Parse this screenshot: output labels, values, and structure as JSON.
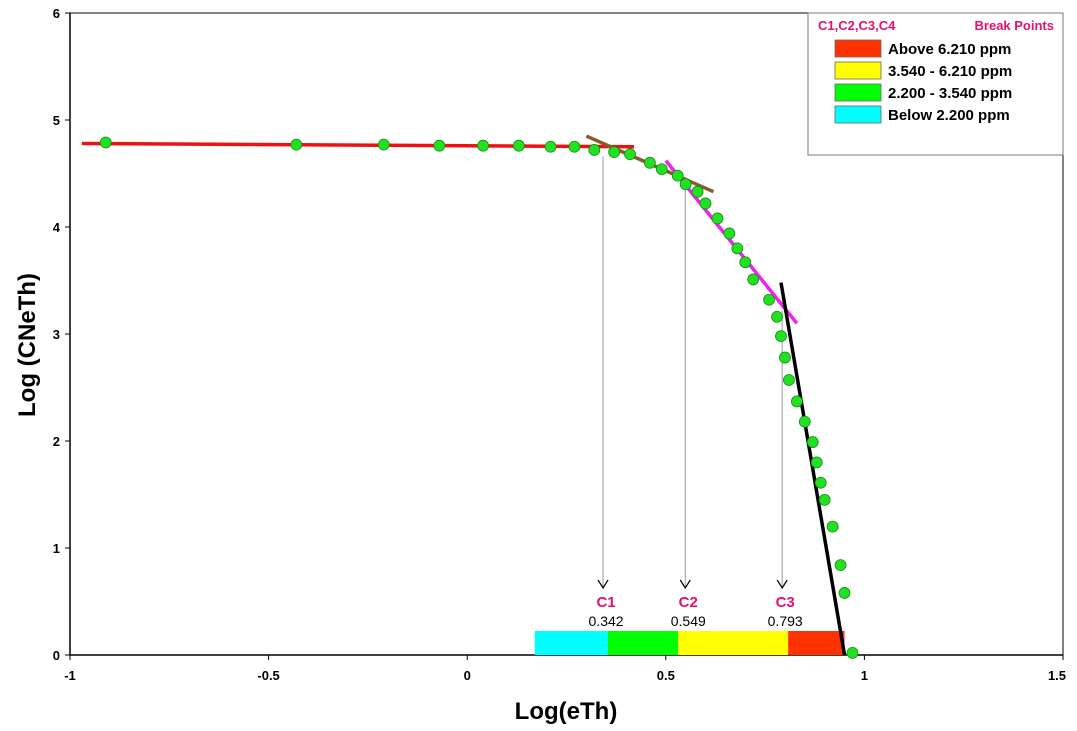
{
  "chart_data": {
    "type": "scatter",
    "title": "",
    "xlabel": "Log(eTh)",
    "ylabel": "Log (CNeTh)",
    "xlim": [
      -1,
      1.5
    ],
    "ylim": [
      0,
      6
    ],
    "x_ticks": [
      "-1",
      "-0.5",
      "0",
      "0.5",
      "1",
      "1.5"
    ],
    "y_ticks": [
      "0",
      "1",
      "2",
      "3",
      "4",
      "5",
      "6"
    ],
    "grid": false,
    "colors": {
      "points": "#22e022",
      "points_stroke": "#149014",
      "line1": "#ee1111",
      "line2": "#8b5a2b",
      "line3": "#ee22ee",
      "line4": "#000000",
      "accent": "#e0116f",
      "connector": "#9a9a9a"
    },
    "points": [
      [
        -0.91,
        4.79
      ],
      [
        -0.43,
        4.77
      ],
      [
        -0.21,
        4.77
      ],
      [
        -0.07,
        4.76
      ],
      [
        0.04,
        4.76
      ],
      [
        0.13,
        4.76
      ],
      [
        0.21,
        4.75
      ],
      [
        0.27,
        4.75
      ],
      [
        0.32,
        4.72
      ],
      [
        0.37,
        4.7
      ],
      [
        0.41,
        4.68
      ],
      [
        0.46,
        4.6
      ],
      [
        0.49,
        4.54
      ],
      [
        0.53,
        4.48
      ],
      [
        0.55,
        4.4
      ],
      [
        0.58,
        4.33
      ],
      [
        0.6,
        4.22
      ],
      [
        0.63,
        4.08
      ],
      [
        0.66,
        3.94
      ],
      [
        0.68,
        3.8
      ],
      [
        0.7,
        3.67
      ],
      [
        0.72,
        3.51
      ],
      [
        0.76,
        3.32
      ],
      [
        0.78,
        3.16
      ],
      [
        0.79,
        2.98
      ],
      [
        0.8,
        2.78
      ],
      [
        0.81,
        2.57
      ],
      [
        0.83,
        2.37
      ],
      [
        0.85,
        2.18
      ],
      [
        0.87,
        1.99
      ],
      [
        0.88,
        1.8
      ],
      [
        0.89,
        1.61
      ],
      [
        0.9,
        1.45
      ],
      [
        0.92,
        1.2
      ],
      [
        0.94,
        0.84
      ],
      [
        0.95,
        0.58
      ],
      [
        0.97,
        0.02
      ]
    ],
    "fit_lines": [
      {
        "color": "#ee1111",
        "from": [
          -0.97,
          4.78
        ],
        "to": [
          0.42,
          4.75
        ]
      },
      {
        "color": "#8b5a2b",
        "from": [
          0.3,
          4.85
        ],
        "to": [
          0.62,
          4.33
        ]
      },
      {
        "color": "#ee22ee",
        "from": [
          0.5,
          4.62
        ],
        "to": [
          0.83,
          3.1
        ]
      },
      {
        "color": "#000000",
        "from": [
          0.79,
          3.48
        ],
        "to": [
          0.95,
          0.0
        ]
      }
    ],
    "break_points": [
      {
        "label": "C1",
        "value": "0.342",
        "x": 0.342,
        "curve_y": 4.66
      },
      {
        "label": "C2",
        "value": "0.549",
        "x": 0.549,
        "curve_y": 4.42
      },
      {
        "label": "C3",
        "value": "0.793",
        "x": 0.793,
        "curve_y": 3.22
      }
    ],
    "color_bar": [
      {
        "from": 0.17,
        "to": 0.354,
        "color": "#00ffff"
      },
      {
        "from": 0.354,
        "to": 0.531,
        "color": "#00ff00"
      },
      {
        "from": 0.531,
        "to": 0.808,
        "color": "#ffff00"
      },
      {
        "from": 0.808,
        "to": 0.95,
        "color": "#ff3300"
      }
    ],
    "legend": {
      "placement": "top-right",
      "title_left": "C1,C2,C3,C4",
      "title_right": "Break Points",
      "entries": [
        {
          "label": "Above 6.210 ppm",
          "color": "#ff3300"
        },
        {
          "label": "3.540 - 6.210 ppm",
          "color": "#ffff00"
        },
        {
          "label": "2.200 - 3.540 ppm",
          "color": "#00ff00"
        },
        {
          "label": "Below  2.200 ppm",
          "color": "#00ffff"
        }
      ]
    }
  }
}
